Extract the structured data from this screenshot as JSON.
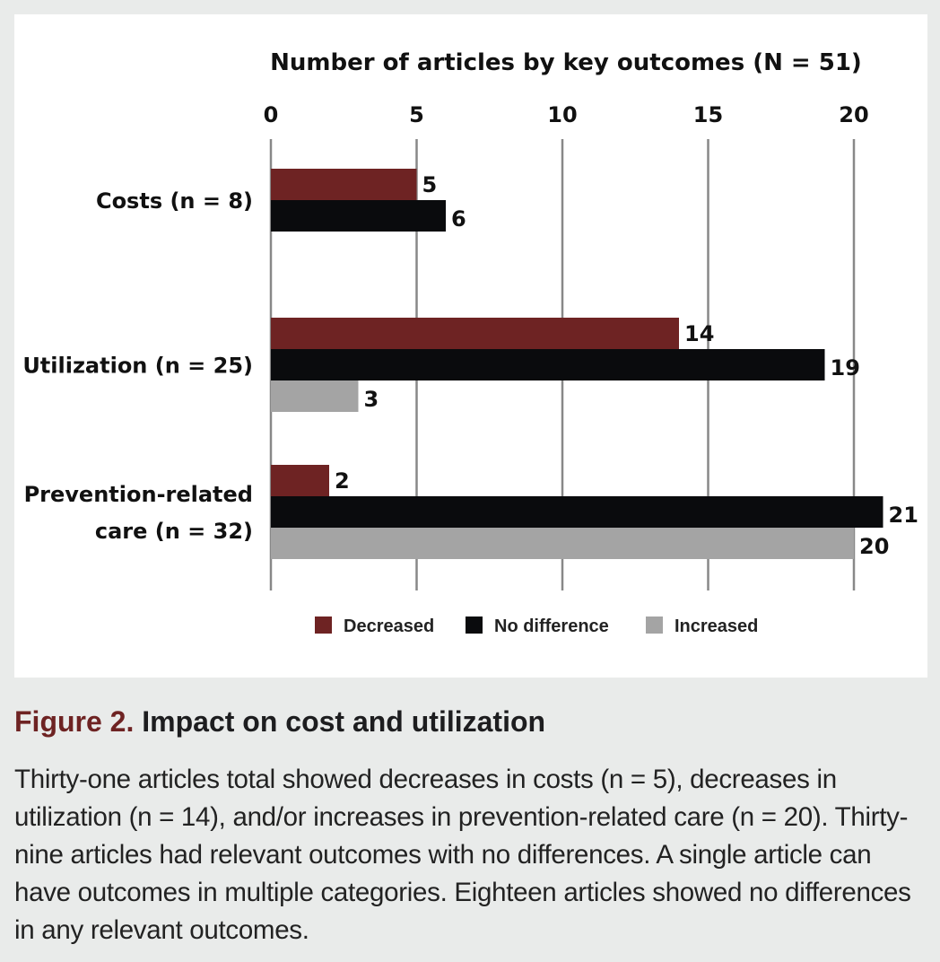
{
  "chart_data": {
    "type": "bar",
    "orientation": "horizontal",
    "title": "Number of articles by key outcomes (N = 51)",
    "categories": [
      "Costs (n = 8)",
      "Utilization (n = 25)",
      "Prevention-related care (n = 32)"
    ],
    "category_lines": [
      [
        "Costs (n = 8)"
      ],
      [
        "Utilization (n = 25)"
      ],
      [
        "Prevention-related",
        "care (n = 32)"
      ]
    ],
    "series": [
      {
        "name": "Decreased",
        "color": "#6e2323",
        "values": [
          5,
          14,
          2
        ]
      },
      {
        "name": "No difference",
        "color": "#0a0b0d",
        "values": [
          6,
          19,
          21
        ]
      },
      {
        "name": "Increased",
        "color": "#a4a4a4",
        "values": [
          null,
          3,
          20
        ]
      }
    ],
    "xlim": [
      0,
      20
    ],
    "xticks": [
      0,
      5,
      10,
      15,
      20
    ],
    "axis_position": "top",
    "grid": true,
    "grid_color": "#888888",
    "legend_placement": "bottom"
  },
  "caption": {
    "figure_label": "Figure 2.",
    "title": "Impact on cost and utilization",
    "body": "Thirty-one articles total showed decreases in costs (n = 5), decreases in utilization (n = 14), and/or increases in prevention-related care (n = 20). Thirty-nine articles had relevant outcomes with no differences. A single article can have outcomes in multiple categories. Eighteen articles showed no differences in any relevant outcomes."
  }
}
